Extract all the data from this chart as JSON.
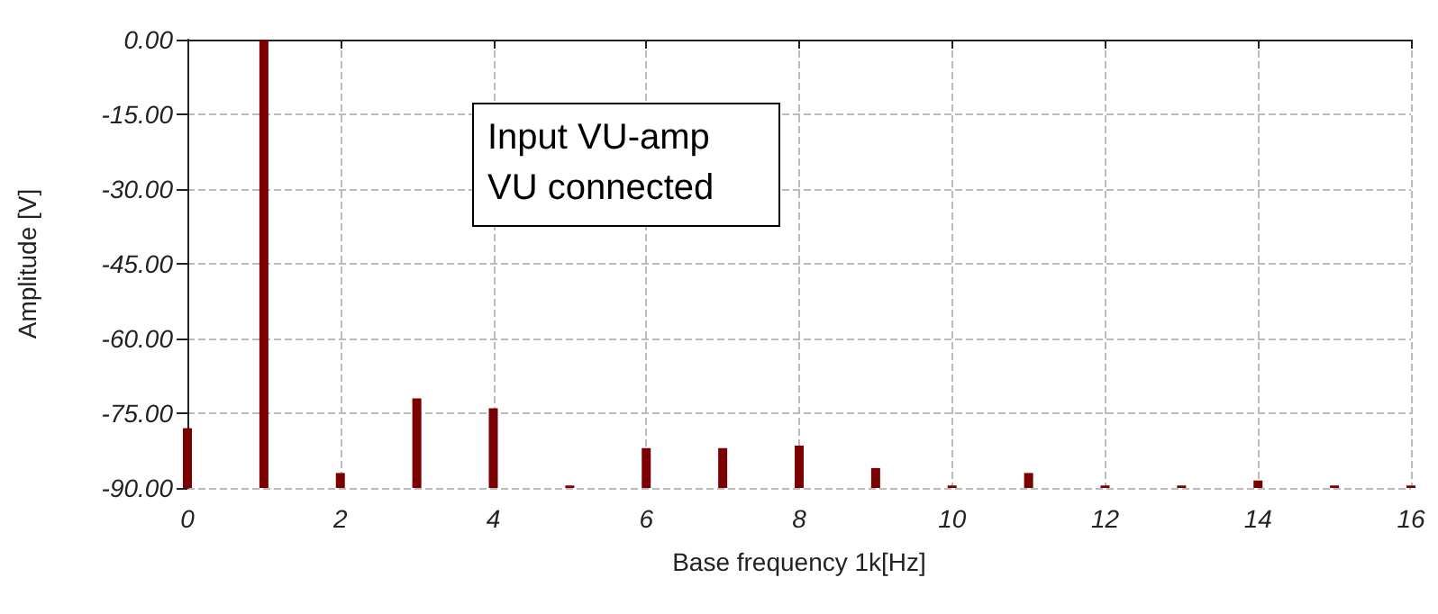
{
  "chart_data": {
    "type": "bar",
    "xlabel": "Base frequency 1k[Hz]",
    "ylabel": "Amplitude [V]",
    "annotations": [
      "Input VU-amp",
      "VU connected"
    ],
    "x": [
      0,
      1,
      2,
      3,
      4,
      5,
      6,
      7,
      8,
      9,
      10,
      11,
      12,
      13,
      14,
      15,
      16
    ],
    "base": [
      -90,
      -90,
      -90,
      -90,
      -90,
      -90,
      -90,
      -90,
      -90,
      -90,
      -90,
      -90,
      -90,
      -90,
      -90,
      -90,
      -90
    ],
    "values": [
      12,
      90,
      3,
      18,
      16,
      0.5,
      8,
      8,
      8.5,
      4,
      0.5,
      3,
      0.5,
      0.5,
      1.5,
      0.5,
      0.5
    ],
    "color": "#7b0000",
    "xlim": [
      0,
      16
    ],
    "xticks": [
      0,
      2,
      4,
      6,
      8,
      10,
      12,
      14,
      16
    ],
    "ylim": [
      -90,
      0
    ],
    "yticks": [
      {
        "value": -90,
        "label": "-90.00"
      },
      {
        "value": -75,
        "label": "-75.00"
      },
      {
        "value": -60,
        "label": "-60.00"
      },
      {
        "value": -45,
        "label": "-45.00"
      },
      {
        "value": -30,
        "label": "-30.00"
      },
      {
        "value": -15,
        "label": "-15.00"
      },
      {
        "value": 0,
        "label": "0.00"
      }
    ],
    "grid": true
  }
}
